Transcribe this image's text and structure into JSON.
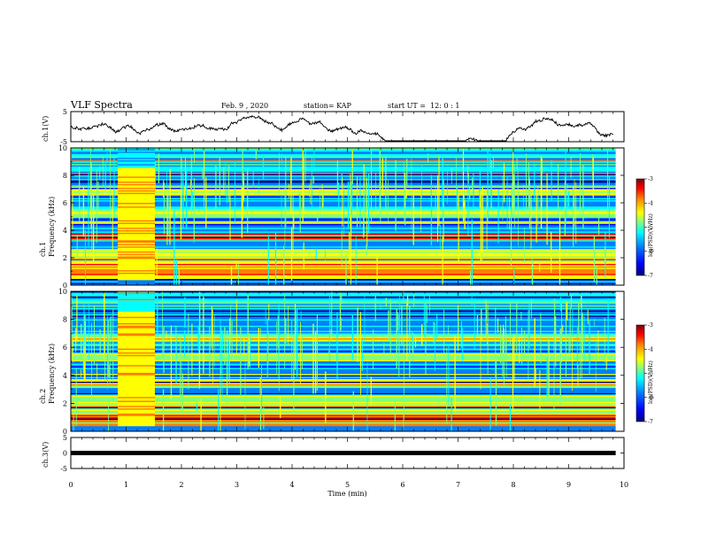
{
  "header": {
    "title": "VLF Spectra",
    "date": "Feb. 9 , 2020",
    "station": "station= KAP",
    "start": "start UT =  12: 0 : 1"
  },
  "chart_data": [
    {
      "type": "line",
      "panel": "ch1-waveform",
      "ylabel": "ch.1(V)",
      "ylim": [
        -5,
        5
      ],
      "yticks": [
        "5",
        "-5"
      ],
      "xlim": [
        0,
        10
      ],
      "description_free": true,
      "color": "#000000"
    },
    {
      "type": "heatmap",
      "panel": "ch1-spectrogram",
      "ylabel": "ch.1\nFrequency (kHz)",
      "ylim": [
        0,
        10
      ],
      "yticks": [
        "0",
        "2",
        "4",
        "6",
        "8",
        "10"
      ],
      "xlim": [
        0,
        10
      ],
      "xend": 9.85,
      "burst_interval_min": [
        0.85,
        1.52
      ],
      "colorbar": {
        "label": "log(PSD)(V²/Hz)",
        "range": [
          -7,
          -3
        ],
        "ticks": [
          "-3",
          "-4",
          "-5",
          "-6",
          "-7"
        ]
      }
    },
    {
      "type": "heatmap",
      "panel": "ch2-spectrogram",
      "ylabel": "ch.2\nFrequency (kHz)",
      "ylim": [
        0,
        10
      ],
      "yticks": [
        "0",
        "2",
        "4",
        "6",
        "8",
        "10"
      ],
      "xlim": [
        0,
        10
      ],
      "xend": 9.85,
      "burst_interval_min": [
        0.85,
        1.52
      ],
      "colorbar": {
        "label": "log(PSD)(V²/Hz)",
        "range": [
          -7,
          -3
        ],
        "ticks": [
          "-3",
          "-4",
          "-5",
          "-6",
          "-7"
        ]
      }
    },
    {
      "type": "line",
      "panel": "ch3-waveform",
      "ylabel": "ch.3(V)",
      "ylim": [
        -5,
        5
      ],
      "yticks": [
        "5",
        "0",
        "-5"
      ],
      "xlim": [
        0,
        10
      ],
      "xend": 9.85,
      "level_V": 0,
      "xlabel": "Time (min)",
      "xticks": [
        "0",
        "1",
        "2",
        "3",
        "4",
        "5",
        "6",
        "7",
        "8",
        "9",
        "10"
      ]
    }
  ],
  "colors": {
    "colormap": [
      "#00007f",
      "#0000ff",
      "#007fff",
      "#00ffff",
      "#7fff7f",
      "#ffff00",
      "#ff7f00",
      "#ff0000",
      "#7f0000"
    ]
  }
}
